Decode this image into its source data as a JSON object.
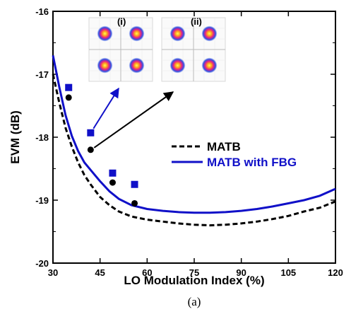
{
  "chart_data": {
    "type": "line",
    "xlabel": "LO Modulation Index (%)",
    "ylabel": "EVM (dB)",
    "caption": "(a)",
    "xlim": [
      30,
      120
    ],
    "ylim": [
      -20,
      -16
    ],
    "xticks": [
      "30",
      "45",
      "60",
      "75",
      "90",
      "105",
      "120"
    ],
    "yticks": [
      "-16",
      "-17",
      "-18",
      "-19",
      "-20"
    ],
    "grid": false,
    "legend_position": "center-right",
    "series": [
      {
        "name": "MATB",
        "style": "dashed",
        "color": "#000000",
        "x": [
          30,
          32,
          34,
          36,
          38,
          40,
          42,
          45,
          48,
          51,
          55,
          60,
          65,
          70,
          75,
          80,
          85,
          90,
          95,
          100,
          105,
          110,
          115,
          120
        ],
        "y": [
          -17.0,
          -17.45,
          -17.85,
          -18.15,
          -18.4,
          -18.6,
          -18.75,
          -18.95,
          -19.08,
          -19.18,
          -19.26,
          -19.31,
          -19.34,
          -19.37,
          -19.39,
          -19.4,
          -19.39,
          -19.37,
          -19.34,
          -19.3,
          -19.25,
          -19.18,
          -19.12,
          -19.02
        ]
      },
      {
        "name": "MATB with FBG",
        "style": "solid",
        "color": "#1010c8",
        "x": [
          30,
          32,
          34,
          36,
          38,
          40,
          42,
          45,
          48,
          51,
          55,
          60,
          65,
          70,
          75,
          80,
          85,
          90,
          95,
          100,
          105,
          110,
          115,
          120
        ],
        "y": [
          -16.7,
          -17.2,
          -17.65,
          -17.98,
          -18.22,
          -18.4,
          -18.52,
          -18.7,
          -18.86,
          -18.98,
          -19.08,
          -19.14,
          -19.17,
          -19.19,
          -19.2,
          -19.2,
          -19.19,
          -19.17,
          -19.14,
          -19.1,
          -19.05,
          -19.0,
          -18.93,
          -18.82
        ]
      }
    ],
    "markers": [
      {
        "series": "MATB",
        "shape": "circle",
        "color": "#000000",
        "x": [
          35,
          42,
          49,
          56
        ],
        "y": [
          -17.37,
          -18.2,
          -18.72,
          -19.05
        ]
      },
      {
        "series": "MATB with FBG",
        "shape": "square",
        "color": "#1010c8",
        "x": [
          35,
          42,
          49,
          56
        ],
        "y": [
          -17.21,
          -17.93,
          -18.57,
          -18.75
        ]
      }
    ],
    "insets": [
      {
        "label": "(i)",
        "points_to": {
          "x": 42,
          "y": -17.93
        }
      },
      {
        "label": "(ii)",
        "points_to": {
          "x": 42,
          "y": -18.2
        }
      }
    ]
  }
}
